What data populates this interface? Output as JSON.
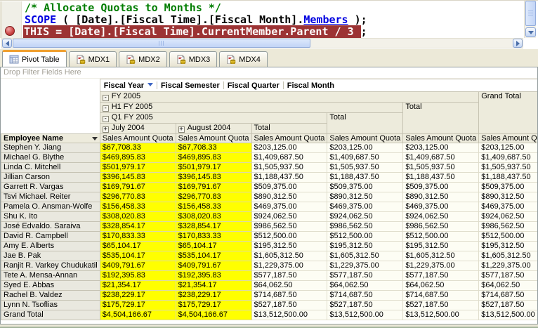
{
  "editor": {
    "comment_line": "/* Allocate Quotas to Months */",
    "scope_keyword": "SCOPE",
    "scope_mid": " ( [Date].[Fiscal Time].[Fiscal Month].",
    "scope_members": "Members",
    "scope_end": " );",
    "highlighted_statement": "THIS = [Date].[Fiscal Time].CurrentMember.Parent / 3 ",
    "highlighted_suffix": ";"
  },
  "tabs": [
    {
      "label": "Pivot Table",
      "icon": "pivot-table-icon",
      "active": true
    },
    {
      "label": "MDX1",
      "icon": "mdx-document-icon",
      "active": false
    },
    {
      "label": "MDX2",
      "icon": "mdx-document-icon",
      "active": false
    },
    {
      "label": "MDX3",
      "icon": "mdx-document-icon",
      "active": false
    },
    {
      "label": "MDX4",
      "icon": "mdx-document-icon",
      "active": false
    }
  ],
  "pivot": {
    "drop_filter_label": "Drop Filter Fields Here",
    "column_fields": [
      "Fiscal Year",
      "Fiscal Semester",
      "Fiscal Quarter",
      "Fiscal Month"
    ],
    "row_field": "Employee Name",
    "measure_label": "Sales Amount Quota",
    "levels": {
      "year": "FY 2005",
      "semester": "H1 FY 2005",
      "quarter": "Q1 FY 2005",
      "month_1": "July 2004",
      "month_2": "August 2004",
      "total": "Total",
      "grand_total": "Grand Total"
    },
    "column_keys": [
      "July 2004",
      "August 2004",
      "Q1 FY 2005 Total",
      "H1 FY 2005 Total",
      "FY 2005 Total",
      "Grand Total"
    ],
    "rows": [
      {
        "name": "Stephen Y. Jiang",
        "values": [
          "$67,708.33",
          "$67,708.33",
          "$203,125.00",
          "$203,125.00",
          "$203,125.00",
          "$203,125.00"
        ]
      },
      {
        "name": "Michael G. Blythe",
        "values": [
          "$469,895.83",
          "$469,895.83",
          "$1,409,687.50",
          "$1,409,687.50",
          "$1,409,687.50",
          "$1,409,687.50"
        ]
      },
      {
        "name": "Linda C. Mitchell",
        "values": [
          "$501,979.17",
          "$501,979.17",
          "$1,505,937.50",
          "$1,505,937.50",
          "$1,505,937.50",
          "$1,505,937.50"
        ]
      },
      {
        "name": "Jillian Carson",
        "values": [
          "$396,145.83",
          "$396,145.83",
          "$1,188,437.50",
          "$1,188,437.50",
          "$1,188,437.50",
          "$1,188,437.50"
        ]
      },
      {
        "name": "Garrett R. Vargas",
        "values": [
          "$169,791.67",
          "$169,791.67",
          "$509,375.00",
          "$509,375.00",
          "$509,375.00",
          "$509,375.00"
        ]
      },
      {
        "name": "Tsvi Michael. Reiter",
        "values": [
          "$296,770.83",
          "$296,770.83",
          "$890,312.50",
          "$890,312.50",
          "$890,312.50",
          "$890,312.50"
        ]
      },
      {
        "name": "Pamela O. Ansman-Wolfe",
        "values": [
          "$156,458.33",
          "$156,458.33",
          "$469,375.00",
          "$469,375.00",
          "$469,375.00",
          "$469,375.00"
        ]
      },
      {
        "name": "Shu K. Ito",
        "values": [
          "$308,020.83",
          "$308,020.83",
          "$924,062.50",
          "$924,062.50",
          "$924,062.50",
          "$924,062.50"
        ]
      },
      {
        "name": "José Edvaldo. Saraiva",
        "values": [
          "$328,854.17",
          "$328,854.17",
          "$986,562.50",
          "$986,562.50",
          "$986,562.50",
          "$986,562.50"
        ]
      },
      {
        "name": "David R. Campbell",
        "values": [
          "$170,833.33",
          "$170,833.33",
          "$512,500.00",
          "$512,500.00",
          "$512,500.00",
          "$512,500.00"
        ]
      },
      {
        "name": "Amy E. Alberts",
        "values": [
          "$65,104.17",
          "$65,104.17",
          "$195,312.50",
          "$195,312.50",
          "$195,312.50",
          "$195,312.50"
        ]
      },
      {
        "name": "Jae B. Pak",
        "values": [
          "$535,104.17",
          "$535,104.17",
          "$1,605,312.50",
          "$1,605,312.50",
          "$1,605,312.50",
          "$1,605,312.50"
        ]
      },
      {
        "name": "Ranjit R. Varkey Chudukatil",
        "values": [
          "$409,791.67",
          "$409,791.67",
          "$1,229,375.00",
          "$1,229,375.00",
          "$1,229,375.00",
          "$1,229,375.00"
        ]
      },
      {
        "name": "Tete A. Mensa-Annan",
        "values": [
          "$192,395.83",
          "$192,395.83",
          "$577,187.50",
          "$577,187.50",
          "$577,187.50",
          "$577,187.50"
        ]
      },
      {
        "name": "Syed E. Abbas",
        "values": [
          "$21,354.17",
          "$21,354.17",
          "$64,062.50",
          "$64,062.50",
          "$64,062.50",
          "$64,062.50"
        ]
      },
      {
        "name": "Rachel B. Valdez",
        "values": [
          "$238,229.17",
          "$238,229.17",
          "$714,687.50",
          "$714,687.50",
          "$714,687.50",
          "$714,687.50"
        ]
      },
      {
        "name": "Lynn N. Tsoflias",
        "values": [
          "$175,729.17",
          "$175,729.17",
          "$527,187.50",
          "$527,187.50",
          "$527,187.50",
          "$527,187.50"
        ]
      },
      {
        "name": "Grand Total",
        "values": [
          "$4,504,166.67",
          "$4,504,166.67",
          "$13,512,500.00",
          "$13,512,500.00",
          "$13,512,500.00",
          "$13,512,500.00"
        ]
      }
    ]
  },
  "colors": {
    "highlight_line_bg": "#9C3334",
    "comment_green": "#007D00",
    "keyword_blue": "#0000E0",
    "yellow_cells": "#FFFF00",
    "header_beige": "#EDEBDC",
    "window_chrome": "#ECE9D8",
    "active_tab_accent": "#F0A030",
    "breakpoint_red": "#C03A3A"
  }
}
